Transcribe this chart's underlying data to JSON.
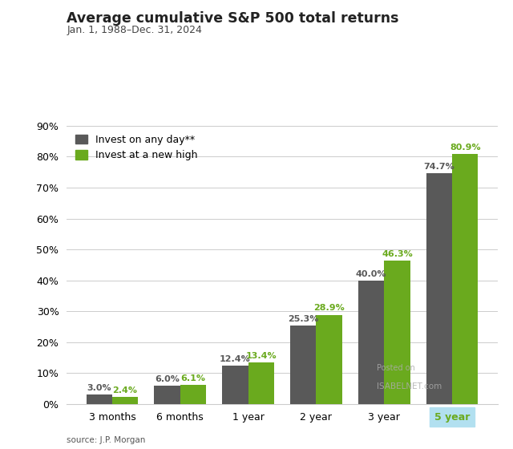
{
  "title": "Average cumulative S&P 500 total returns",
  "subtitle": "Jan. 1, 1988–Dec. 31, 2024",
  "source": "source: J.P. Morgan",
  "categories": [
    "3 months",
    "6 months",
    "1 year",
    "2 year",
    "3 year",
    "5 year"
  ],
  "any_day_values": [
    3.0,
    6.0,
    12.4,
    25.3,
    40.0,
    74.7
  ],
  "new_high_values": [
    2.4,
    6.1,
    13.4,
    28.9,
    46.3,
    80.9
  ],
  "any_day_color": "#595959",
  "new_high_color": "#6aaa1e",
  "bar_width": 0.38,
  "ylim": [
    0,
    90
  ],
  "yticks": [
    0,
    10,
    20,
    30,
    40,
    50,
    60,
    70,
    80,
    90
  ],
  "ytick_labels": [
    "0%",
    "10%",
    "20%",
    "30%",
    "40%",
    "50%",
    "60%",
    "70%",
    "80%",
    "90%"
  ],
  "legend_labels": [
    "Invest on any day**",
    "Invest at a new high"
  ],
  "value_label_color_any": "#595959",
  "value_label_color_high": "#6aaa1e",
  "background_color": "#ffffff",
  "watermark": "ISABELNET.com",
  "watermark2": "Posted on"
}
